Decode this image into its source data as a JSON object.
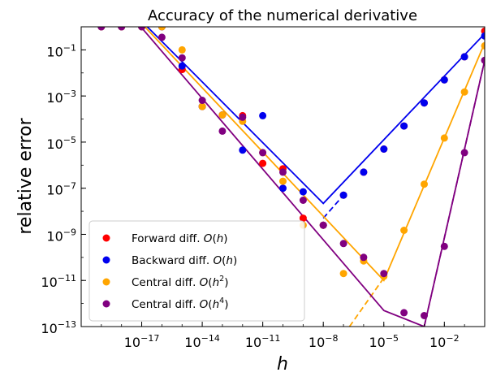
{
  "chart_data": {
    "type": "scatter",
    "title": "Accuracy of the numerical derivative",
    "xlabel": "h",
    "ylabel": "relative error",
    "xscale": "log",
    "yscale": "log",
    "xlim": [
      1e-20,
      1
    ],
    "ylim": [
      1e-13,
      1
    ],
    "x_ticks": [
      {
        "value": 1e-17,
        "base": "10",
        "exp": "−17"
      },
      {
        "value": 1e-14,
        "base": "10",
        "exp": "−14"
      },
      {
        "value": 1e-11,
        "base": "10",
        "exp": "−11"
      },
      {
        "value": 1e-08,
        "base": "10",
        "exp": "−8"
      },
      {
        "value": 1e-05,
        "base": "10",
        "exp": "−5"
      },
      {
        "value": 0.01,
        "base": "10",
        "exp": "−2"
      }
    ],
    "y_ticks": [
      {
        "value": 0.1,
        "base": "10",
        "exp": "−1"
      },
      {
        "value": 0.001,
        "base": "10",
        "exp": "−3"
      },
      {
        "value": 1e-05,
        "base": "10",
        "exp": "−5"
      },
      {
        "value": 1e-07,
        "base": "10",
        "exp": "−7"
      },
      {
        "value": 1e-09,
        "base": "10",
        "exp": "−9"
      },
      {
        "value": 1e-11,
        "base": "10",
        "exp": "−11"
      },
      {
        "value": 1e-13,
        "base": "10",
        "exp": "−13"
      }
    ],
    "legend_position": "lower-left",
    "series": [
      {
        "name": "Forward diff.",
        "order": "h",
        "color": "#ff0000",
        "points": [
          [
            1e-19,
            1
          ],
          [
            1e-18,
            1
          ],
          [
            1e-17,
            1
          ],
          [
            1e-16,
            1
          ],
          [
            1e-15,
            0.014
          ],
          [
            1e-14,
            0.00035
          ],
          [
            1e-13,
            0.00015
          ],
          [
            1e-12,
            0.00014
          ],
          [
            1e-11,
            1.2e-06
          ],
          [
            1e-10,
            7e-07
          ],
          [
            1e-09,
            5e-09
          ],
          [
            1e-08,
            2.5e-09
          ],
          [
            1e-07,
            5e-08
          ],
          [
            1e-06,
            5e-07
          ],
          [
            1e-05,
            5e-06
          ],
          [
            0.0001,
            5e-05
          ],
          [
            0.001,
            0.0005
          ],
          [
            0.01,
            0.005
          ],
          [
            0.1,
            0.05
          ],
          [
            1,
            0.65
          ]
        ]
      },
      {
        "name": "Backward diff.",
        "order": "h",
        "color": "#0000ee",
        "points": [
          [
            1e-19,
            1
          ],
          [
            1e-18,
            1
          ],
          [
            1e-17,
            1
          ],
          [
            1e-16,
            1
          ],
          [
            1e-15,
            0.02
          ],
          [
            1e-14,
            0.00035
          ],
          [
            1e-13,
            0.00015
          ],
          [
            1e-12,
            4.5e-06
          ],
          [
            1e-11,
            0.00014
          ],
          [
            1e-10,
            1e-07
          ],
          [
            1e-09,
            7e-08
          ],
          [
            1e-08,
            2.5e-09
          ],
          [
            1e-07,
            5e-08
          ],
          [
            1e-06,
            5e-07
          ],
          [
            1e-05,
            5e-06
          ],
          [
            0.0001,
            5e-05
          ],
          [
            0.001,
            0.0005
          ],
          [
            0.01,
            0.005
          ],
          [
            0.1,
            0.05
          ],
          [
            1,
            0.4
          ]
        ]
      },
      {
        "name": "Central diff.",
        "order": "h^2",
        "color": "#ffa500",
        "points": [
          [
            1e-19,
            1
          ],
          [
            1e-18,
            1
          ],
          [
            1e-17,
            1
          ],
          [
            1e-16,
            1
          ],
          [
            1e-15,
            0.1
          ],
          [
            1e-14,
            0.00035
          ],
          [
            1e-13,
            0.00015
          ],
          [
            1e-12,
            8e-05
          ],
          [
            1e-11,
            3.5e-06
          ],
          [
            1e-10,
            2e-07
          ],
          [
            1e-09,
            2.5e-09
          ],
          [
            1e-08,
            2.5e-09
          ],
          [
            1e-07,
            2e-11
          ],
          [
            1e-06,
            7e-11
          ],
          [
            1e-05,
            1.5e-11
          ],
          [
            0.0001,
            1.5e-09
          ],
          [
            0.001,
            1.5e-07
          ],
          [
            0.01,
            1.5e-05
          ],
          [
            0.1,
            0.0015
          ],
          [
            1,
            0.15
          ]
        ]
      },
      {
        "name": "Central diff.",
        "order": "h^4",
        "color": "#800080",
        "points": [
          [
            1e-19,
            1
          ],
          [
            1e-18,
            1
          ],
          [
            1e-17,
            1
          ],
          [
            1e-16,
            0.35
          ],
          [
            1e-15,
            0.045
          ],
          [
            1e-14,
            0.00065
          ],
          [
            1e-13,
            3e-05
          ],
          [
            1e-12,
            0.00012
          ],
          [
            1e-11,
            3.5e-06
          ],
          [
            1e-10,
            5e-07
          ],
          [
            1e-09,
            3e-08
          ],
          [
            1e-08,
            2.5e-09
          ],
          [
            1e-07,
            4e-10
          ],
          [
            1e-06,
            1e-10
          ],
          [
            1e-05,
            2e-11
          ],
          [
            0.0001,
            4e-13
          ],
          [
            0.001,
            3e-13
          ],
          [
            0.01,
            3e-10
          ],
          [
            0.1,
            3.5e-06
          ],
          [
            1,
            0.035
          ]
        ]
      }
    ],
    "fit_lines": [
      {
        "color": "#0000ee",
        "style": "solid",
        "points": [
          [
            1e-19,
            100
          ],
          [
            1e-08,
            2.2e-08
          ],
          [
            1,
            0.5
          ]
        ]
      },
      {
        "color": "#0000ee",
        "style": "dashed",
        "points": [
          [
            1e-08,
            5e-09
          ],
          [
            1e-07,
            5e-08
          ]
        ]
      },
      {
        "color": "#ffa500",
        "style": "solid",
        "points": [
          [
            1e-19,
            100
          ],
          [
            1e-05,
            1e-11
          ],
          [
            1,
            0.2
          ]
        ]
      },
      {
        "color": "#ffa500",
        "style": "dashed",
        "points": [
          [
            2e-07,
            1e-13
          ],
          [
            1e-05,
            1.3e-11
          ]
        ]
      },
      {
        "color": "#800080",
        "style": "solid",
        "points": [
          [
            1e-19,
            100
          ],
          [
            1e-05,
            5e-13
          ],
          [
            0.001,
            1e-13
          ],
          [
            1,
            0.035
          ]
        ]
      },
      {
        "color": "#800080",
        "style": "dashed",
        "points": [
          [
            0.001,
            1e-13
          ],
          [
            1,
            0.035
          ]
        ]
      }
    ]
  }
}
